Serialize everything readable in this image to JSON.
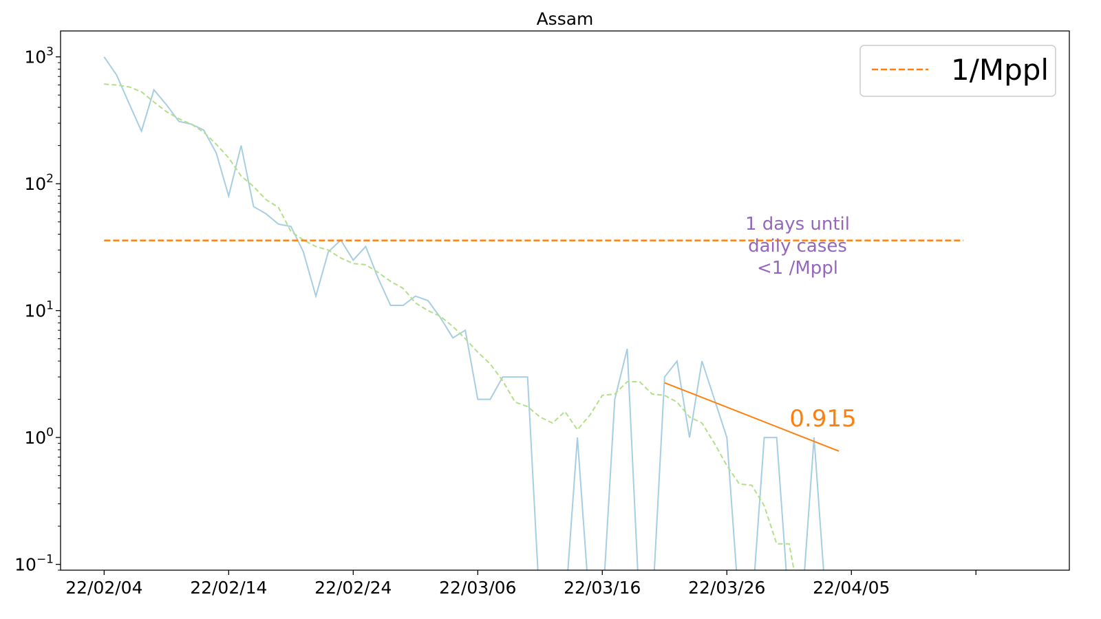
{
  "chart_data": {
    "type": "line",
    "title": "Assam",
    "xlabel": "",
    "ylabel": "",
    "yscale": "log",
    "ylim": [
      0.09,
      1600
    ],
    "xlim_days": [
      -3.5,
      77.5
    ],
    "x_start_date": "2022-02-04",
    "x_ticks": [
      {
        "day": 0,
        "label": "22/02/04"
      },
      {
        "day": 10,
        "label": "22/02/14"
      },
      {
        "day": 20,
        "label": "22/02/24"
      },
      {
        "day": 30,
        "label": "22/03/06"
      },
      {
        "day": 40,
        "label": "22/03/16"
      },
      {
        "day": 50,
        "label": "22/03/26"
      },
      {
        "day": 60,
        "label": "22/04/05"
      },
      {
        "day": 70,
        "label": ""
      }
    ],
    "y_ticks": [
      {
        "value": 1000,
        "base": "10",
        "exp": "3"
      },
      {
        "value": 100,
        "base": "10",
        "exp": "2"
      },
      {
        "value": 10,
        "base": "10",
        "exp": "1"
      },
      {
        "value": 1,
        "base": "10",
        "exp": "0"
      },
      {
        "value": 0.1,
        "base": "10",
        "exp": "−1"
      }
    ],
    "series": [
      {
        "kind": "daily",
        "color": "#a6cee3",
        "values": [
          1000,
          720,
          430,
          260,
          550,
          420,
          310,
          295,
          265,
          175,
          80,
          200,
          66,
          58,
          48,
          46,
          29,
          13,
          29,
          36,
          25,
          32,
          18,
          11,
          11,
          13,
          12,
          8.8,
          6.1,
          7,
          2,
          2,
          3,
          3,
          3,
          0,
          0,
          0,
          1,
          0,
          0,
          2,
          5,
          0,
          0,
          3,
          4,
          1,
          4,
          2,
          1,
          0,
          0,
          1,
          1,
          0,
          0,
          1,
          0
        ]
      },
      {
        "kind": "average",
        "color": "#b2df8a",
        "values": [
          610,
          600,
          580,
          530,
          440,
          370,
          325,
          295,
          255,
          205,
          160,
          115,
          95,
          75,
          65,
          42,
          36,
          32,
          30,
          26,
          23.5,
          23,
          20,
          17,
          15,
          11.5,
          10,
          9,
          7.5,
          6,
          4.7,
          3.8,
          2.8,
          1.9,
          1.75,
          1.45,
          1.3,
          1.6,
          1.15,
          1.5,
          2.15,
          2.2,
          2.75,
          2.75,
          2.2,
          2.15,
          1.9,
          1.45,
          1.3,
          0.9,
          0.6,
          0.43,
          0.42,
          0.29,
          0.145,
          0.145,
          0
        ]
      }
    ],
    "threshold": {
      "value": 35.7,
      "day_start": 0,
      "day_end": 69,
      "color": "#ff7f0e"
    },
    "trend": {
      "day_start": 45,
      "value_start": 2.7,
      "day_end": 59,
      "value_end": 0.78,
      "color": "#ff7f0e"
    },
    "legend": {
      "position": "top-right",
      "label": "1/Mppl"
    },
    "annotation": {
      "lines": [
        "1 days until",
        "daily cases",
        "<1 /Mppl"
      ],
      "color": "#9467bd"
    },
    "slope_label": "0.915"
  }
}
